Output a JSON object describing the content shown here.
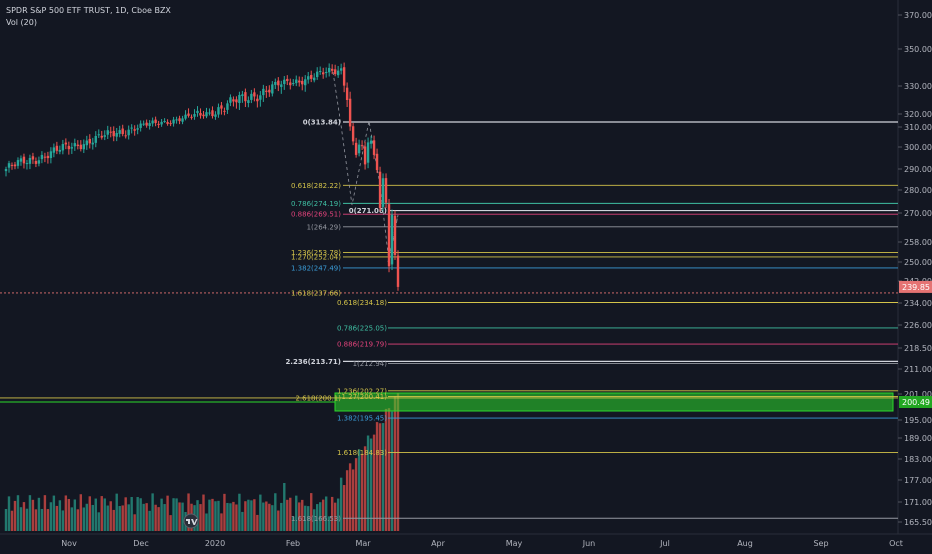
{
  "legend": {
    "symbol": "SPDR S&P 500 ETF TRUST, 1D, Cboe BZX",
    "volume": "Vol (20)"
  },
  "colors": {
    "background": "#131722",
    "up": "#26a69a",
    "down": "#ef5350",
    "vol_up": "#22786e",
    "vol_down": "#ab3f3e",
    "axis_text": "#b2b5be",
    "fib_white": "#d1d4dc",
    "fib_gray": "#9598a1",
    "fib_yellow": "#d4c44a",
    "fib_teal": "#3fbfa3",
    "fib_pink": "#e2437b",
    "fib_blue": "#3b9dd8",
    "zone_green": "#2bd82b",
    "price_tag": "#e57373"
  },
  "chart_data": {
    "type": "candlestick",
    "ylim": [
      163,
      380
    ],
    "price_ticks": [
      "370.00",
      "350.00",
      "330.00",
      "320.00",
      "310.00",
      "300.00",
      "290.00",
      "280.00",
      "270.00",
      "258.00",
      "250.00",
      "242.00",
      "234.00",
      "226.00",
      "218.50",
      "211.00",
      "201.00",
      "195.00",
      "189.00",
      "183.00",
      "177.00",
      "171.00",
      "165.50"
    ],
    "time_ticks": [
      "Nov",
      "Dec",
      "2020",
      "Feb",
      "Mar",
      "Apr",
      "May",
      "Jun",
      "Jul",
      "Aug",
      "Sep",
      "Oct"
    ],
    "current_price": "239.85",
    "zone_price": "200.49",
    "close_path_start": 290,
    "close_path_peak": 339.08,
    "close_path_tail": [
      330.2,
      325.0,
      310.4,
      302.8,
      296.4,
      301.2,
      300.6,
      292.1,
      302.3,
      303.2,
      296.4,
      289.5,
      272.1,
      285.6,
      274.5,
      248.2,
      269.3,
      252.8,
      239.85
    ],
    "fib_levels": [
      {
        "label": "0(313.84)",
        "price": 313.84,
        "color": "fib_white",
        "bold": true
      },
      {
        "label": "0.618(282.22)",
        "price": 282.22,
        "color": "fib_yellow"
      },
      {
        "label": "0.786(274.19)",
        "price": 274.19,
        "color": "fib_teal"
      },
      {
        "label": "0.886(269.51)",
        "price": 269.51,
        "color": "fib_pink"
      },
      {
        "label": "0(271.06)",
        "price": 271.06,
        "color": "fib_white",
        "bold": true
      },
      {
        "label": "1(264.29)",
        "price": 264.29,
        "color": "fib_gray"
      },
      {
        "label": "1.236(253.78)",
        "price": 253.78,
        "color": "fib_yellow"
      },
      {
        "label": "1.270(252.04)",
        "price": 252.04,
        "color": "fib_yellow"
      },
      {
        "label": "1.382(247.49)",
        "price": 247.49,
        "color": "fib_blue"
      },
      {
        "label": "1.618(237.66)",
        "price": 237.66,
        "color": "fib_yellow"
      },
      {
        "label": "0.618(234.18)",
        "price": 234.18,
        "color": "fib_yellow"
      },
      {
        "label": "0.786(225.05)",
        "price": 225.05,
        "color": "fib_teal"
      },
      {
        "label": "0.886(219.79)",
        "price": 219.79,
        "color": "fib_pink"
      },
      {
        "label": "2.236(213.71)",
        "price": 213.71,
        "color": "fib_white",
        "bold": true
      },
      {
        "label": "1(212.94)",
        "price": 212.94,
        "color": "fib_gray"
      },
      {
        "label": "1.236(202.27)",
        "price": 202.27,
        "color": "fib_yellow"
      },
      {
        "label": "1.27(200.41)",
        "price": 200.41,
        "color": "fib_yellow"
      },
      {
        "label": "2.618(200.1)",
        "price": 200.1,
        "color": "fib_yellow"
      },
      {
        "label": "1.382(195.45)",
        "price": 195.45,
        "color": "fib_blue"
      },
      {
        "label": "1.618(184.83)",
        "price": 184.83,
        "color": "fib_yellow"
      },
      {
        "label": "1.618(166.53)",
        "price": 166.53,
        "color": "fib_gray"
      }
    ]
  }
}
